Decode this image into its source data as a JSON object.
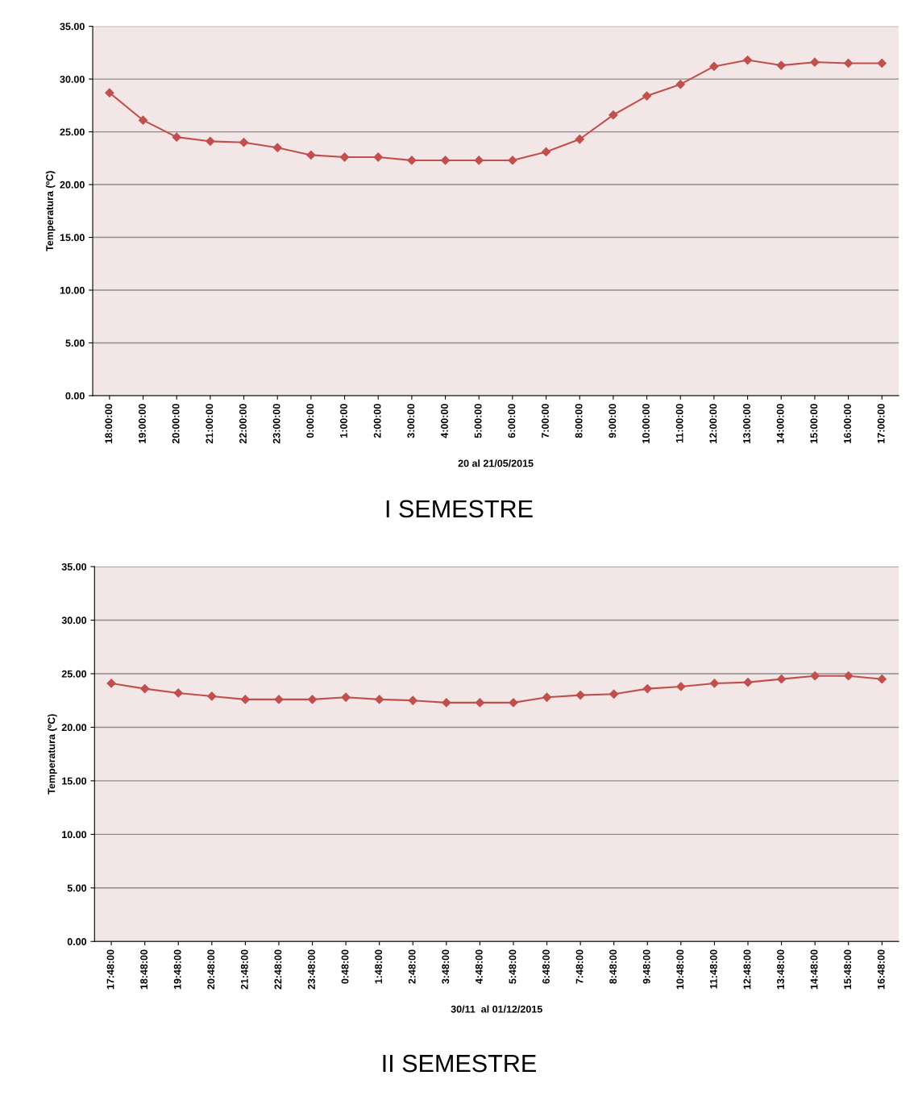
{
  "chart_data": [
    {
      "type": "line",
      "title": "I SEMESTRE",
      "xlabel": "20 al 21/05/2015",
      "ylabel": "Temperatura (ºC)",
      "categories": [
        "18:00:00",
        "19:00:00",
        "20:00:00",
        "21:00:00",
        "22:00:00",
        "23:00:00",
        "0:00:00",
        "1:00:00",
        "2:00:00",
        "3:00:00",
        "4:00:00",
        "5:00:00",
        "6:00:00",
        "7:00:00",
        "8:00:00",
        "9:00:00",
        "10:00:00",
        "11:00:00",
        "12:00:00",
        "13:00:00",
        "14:00:00",
        "15:00:00",
        "16:00:00",
        "17:00:00"
      ],
      "series": [
        {
          "color": "#c0504d",
          "values": [
            28.7,
            26.1,
            24.5,
            24.1,
            24.0,
            23.5,
            22.8,
            22.6,
            22.6,
            22.3,
            22.3,
            22.3,
            22.3,
            23.1,
            24.3,
            26.6,
            28.4,
            29.5,
            31.2,
            31.8,
            31.3,
            31.6,
            31.5,
            31.5
          ]
        }
      ],
      "ylim": [
        0,
        35
      ],
      "yticks": [
        {
          "value": 0,
          "label": "0.00"
        },
        {
          "value": 5,
          "label": "5.00"
        },
        {
          "value": 10,
          "label": "10.00"
        },
        {
          "value": 15,
          "label": "15.00"
        },
        {
          "value": 20,
          "label": "20.00"
        },
        {
          "value": 25,
          "label": "25.00"
        },
        {
          "value": 30,
          "label": "30.00"
        },
        {
          "value": 35,
          "label": "35.00"
        }
      ],
      "grid": "y",
      "legend": false,
      "marker": "diamond",
      "line_style": "solid"
    },
    {
      "type": "line",
      "title": "II SEMESTRE",
      "xlabel": "30/11  al 01/12/2015",
      "ylabel": "Temperatura (ºC)",
      "categories": [
        "17:48:00",
        "18:48:00",
        "19:48:00",
        "20:48:00",
        "21:48:00",
        "22:48:00",
        "23:48:00",
        "0:48:00",
        "1:48:00",
        "2:48:00",
        "3:48:00",
        "4:48:00",
        "5:48:00",
        "6:48:00",
        "7:48:00",
        "8:48:00",
        "9:48:00",
        "10:48:00",
        "11:48:00",
        "12:48:00",
        "13:48:00",
        "14:48:00",
        "15:48:00",
        "16:48:00"
      ],
      "series": [
        {
          "color": "#c0504d",
          "values": [
            24.1,
            23.6,
            23.2,
            22.9,
            22.6,
            22.6,
            22.6,
            22.8,
            22.6,
            22.5,
            22.3,
            22.3,
            22.3,
            22.8,
            23.0,
            23.1,
            23.6,
            23.8,
            24.1,
            24.2,
            24.5,
            24.8,
            24.8,
            24.5
          ]
        }
      ],
      "ylim": [
        0,
        35
      ],
      "yticks": [
        {
          "value": 0,
          "label": "0.00"
        },
        {
          "value": 5,
          "label": "5.00"
        },
        {
          "value": 10,
          "label": "10.00"
        },
        {
          "value": 15,
          "label": "15.00"
        },
        {
          "value": 20,
          "label": "20.00"
        },
        {
          "value": 25,
          "label": "25.00"
        },
        {
          "value": 30,
          "label": "30.00"
        },
        {
          "value": 35,
          "label": "35.00"
        }
      ],
      "grid": "y",
      "legend": false,
      "marker": "diamond",
      "line_style": "solid"
    }
  ]
}
